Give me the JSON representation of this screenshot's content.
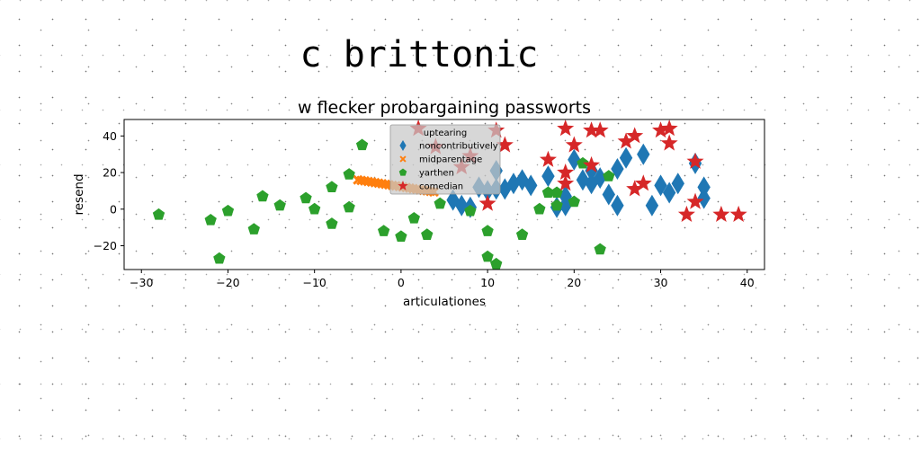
{
  "chart_data": {
    "type": "scatter",
    "suptitle": "c brittonic",
    "title": "w flecker probargaining passworts",
    "xlabel": "articulationes",
    "ylabel": "resend",
    "xlim": [
      -32,
      42
    ],
    "ylim": [
      -33,
      49
    ],
    "xticks": [
      -30,
      -20,
      -10,
      0,
      10,
      20,
      30,
      40
    ],
    "yticks": [
      -20,
      0,
      20,
      40
    ],
    "grid": false,
    "legend": {
      "title": "uptearing",
      "placement": "top-center"
    },
    "series": [
      {
        "name": "noncontributively",
        "marker": "thin_diamond",
        "color": "#1f77b4",
        "points": [
          [
            6,
            5
          ],
          [
            7,
            2
          ],
          [
            8,
            1
          ],
          [
            9,
            12
          ],
          [
            10,
            10
          ],
          [
            11,
            11
          ],
          [
            12,
            11
          ],
          [
            13,
            14
          ],
          [
            14,
            16
          ],
          [
            17,
            18
          ],
          [
            18,
            1
          ],
          [
            19,
            7
          ],
          [
            20,
            27
          ],
          [
            21,
            16
          ],
          [
            22,
            14
          ],
          [
            23,
            17
          ],
          [
            24,
            8
          ],
          [
            25,
            2
          ],
          [
            25,
            22
          ],
          [
            26,
            28
          ],
          [
            28,
            30
          ],
          [
            29,
            2
          ],
          [
            30,
            13
          ],
          [
            31,
            9
          ],
          [
            32,
            14
          ],
          [
            34,
            25
          ],
          [
            35,
            12
          ],
          [
            35,
            6
          ],
          [
            19,
            2
          ],
          [
            11,
            21
          ],
          [
            22,
            21
          ],
          [
            15,
            13
          ]
        ]
      },
      {
        "name": "midparentage",
        "marker": "X",
        "color": "#ff7f0e",
        "points": [
          [
            -5,
            16
          ],
          [
            -4.6,
            15.7
          ],
          [
            -4.2,
            15.4
          ],
          [
            -3.8,
            15.1
          ],
          [
            -3.4,
            14.8
          ],
          [
            -3,
            14.5
          ],
          [
            -2.6,
            14.2
          ],
          [
            -2.2,
            13.9
          ],
          [
            -1.8,
            13.6
          ],
          [
            -1.4,
            13.3
          ],
          [
            -1,
            13
          ],
          [
            -0.6,
            12.7
          ],
          [
            -0.2,
            12.4
          ],
          [
            0.2,
            12.1
          ],
          [
            0.6,
            11.8
          ],
          [
            1,
            11.5
          ],
          [
            1.4,
            11.2
          ],
          [
            1.8,
            10.9
          ],
          [
            2.2,
            10.6
          ],
          [
            2.6,
            10.3
          ],
          [
            3,
            10
          ],
          [
            3.4,
            9.7
          ],
          [
            3.8,
            9.4
          ]
        ]
      },
      {
        "name": "yarthen",
        "marker": "pentagon",
        "color": "#2ca02c",
        "points": [
          [
            -28,
            -3
          ],
          [
            -22,
            -6
          ],
          [
            -21,
            -27
          ],
          [
            -20,
            -1
          ],
          [
            -17,
            -11
          ],
          [
            -16,
            7
          ],
          [
            -14,
            2
          ],
          [
            -11,
            6
          ],
          [
            -10,
            0
          ],
          [
            -8,
            12
          ],
          [
            -8,
            -8
          ],
          [
            -6,
            1
          ],
          [
            -6,
            19
          ],
          [
            -4.5,
            35
          ],
          [
            -2,
            -12
          ],
          [
            0,
            -15
          ],
          [
            1.5,
            -5
          ],
          [
            3,
            -14
          ],
          [
            4.5,
            3
          ],
          [
            8,
            -1
          ],
          [
            10,
            -12
          ],
          [
            10,
            -26
          ],
          [
            11,
            -30
          ],
          [
            14,
            -14
          ],
          [
            16,
            0
          ],
          [
            17,
            9
          ],
          [
            18,
            9
          ],
          [
            18,
            2
          ],
          [
            20,
            4
          ],
          [
            21,
            25
          ],
          [
            23,
            -22
          ],
          [
            24,
            18
          ]
        ]
      },
      {
        "name": "comedian",
        "marker": "star",
        "color": "#d62728",
        "points": [
          [
            2,
            44
          ],
          [
            4,
            34
          ],
          [
            7,
            23
          ],
          [
            8,
            29
          ],
          [
            10,
            3
          ],
          [
            11,
            43
          ],
          [
            12,
            35
          ],
          [
            17,
            27
          ],
          [
            19,
            44
          ],
          [
            19,
            20
          ],
          [
            19,
            14
          ],
          [
            20,
            35
          ],
          [
            22,
            43
          ],
          [
            22,
            24
          ],
          [
            23,
            43
          ],
          [
            26,
            37
          ],
          [
            27,
            40
          ],
          [
            27,
            11
          ],
          [
            28,
            14
          ],
          [
            30,
            43
          ],
          [
            31,
            44
          ],
          [
            31,
            36
          ],
          [
            33,
            -3
          ],
          [
            34,
            4
          ],
          [
            34,
            26
          ],
          [
            37,
            -3
          ],
          [
            39,
            -3
          ]
        ]
      }
    ]
  }
}
